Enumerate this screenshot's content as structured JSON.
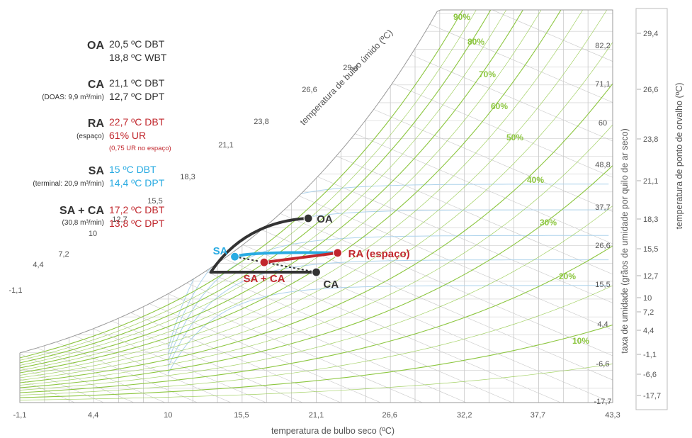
{
  "colors": {
    "dark": "#333333",
    "red": "#c1272d",
    "blue": "#29abe2",
    "green": "#8cc63f",
    "text_gray": "#555555",
    "grid": "#b3b3b3",
    "saturation": "#888888"
  },
  "legend": {
    "oa": {
      "code": "OA",
      "lines": [
        "20,5 ºC DBT",
        "18,8 ºC WBT"
      ]
    },
    "ca": {
      "code": "CA",
      "sub": "(DOAS: 9,9 m³/min)",
      "lines": [
        "21,1 ºC DBT",
        "12,7 ºC DPT"
      ]
    },
    "ra": {
      "code": "RA",
      "sub": "(espaço)",
      "lines": [
        "22,7 ºC DBT",
        "61% UR"
      ],
      "note": "(0,75 UR no espaço)"
    },
    "sa": {
      "code": "SA",
      "sub": "(terminal: 20,9 m³/min)",
      "lines": [
        "15 ºC DBT",
        "14,4 ºC DPT"
      ]
    },
    "sa_ca": {
      "code": "SA + CA",
      "sub": "(30,8 m³/min)",
      "lines": [
        "17,2 ºC DBT",
        "13,8 ºC DPT"
      ]
    }
  },
  "chart_data": {
    "type": "psychrometric",
    "xlabel": "temperatura de bulbo seco (ºC)",
    "x_ticks": [
      "-1,1",
      "4,4",
      "10",
      "15,5",
      "21,1",
      "26,6",
      "32,2",
      "37,7",
      "43,3"
    ],
    "xlim": [
      -1.1,
      43.3
    ],
    "ylabel_left": "taxa de umidade (grãos de umidade por quilo de ar seco)",
    "humidity_ticks": [
      "82,2",
      "71,1",
      "60",
      "48,8",
      "37,7",
      "26,6",
      "15,5",
      "4,4",
      "-6,6",
      "-17,7"
    ],
    "ylabel_right": "temperatura de ponto de orvalho (ºC)",
    "dewpoint_ticks": [
      "29,4",
      "26,6",
      "23,8",
      "21,1",
      "18,3",
      "15,5",
      "12,7",
      "10",
      "7,2",
      "4,4",
      "-1,1",
      "-6,6",
      "-17,7"
    ],
    "wet_bulb_label": "temperatura de bulbo úmido (ºC)",
    "wet_bulb_ticks": [
      "-1,1",
      "4,4",
      "7,2",
      "10",
      "12,7",
      "15,5",
      "18,3",
      "21,1",
      "23,8",
      "26,6",
      "29,4"
    ],
    "rh_labels": [
      "90%",
      "80%",
      "70%",
      "60%",
      "50%",
      "40%",
      "30%",
      "20%",
      "10%"
    ],
    "points": [
      {
        "name": "OA",
        "label": "OA",
        "dbt": 20.5,
        "wbt": 18.8
      },
      {
        "name": "CA",
        "label": "CA",
        "dbt": 21.1,
        "dpt": 12.7
      },
      {
        "name": "RA",
        "label": "RA (espaço)",
        "dbt": 22.7,
        "rh": 61
      },
      {
        "name": "SA",
        "label": "SA",
        "dbt": 15,
        "dpt": 14.4
      },
      {
        "name": "SA+CA",
        "label": "SA + CA",
        "dbt": 17.2,
        "dpt": 13.8
      }
    ]
  }
}
